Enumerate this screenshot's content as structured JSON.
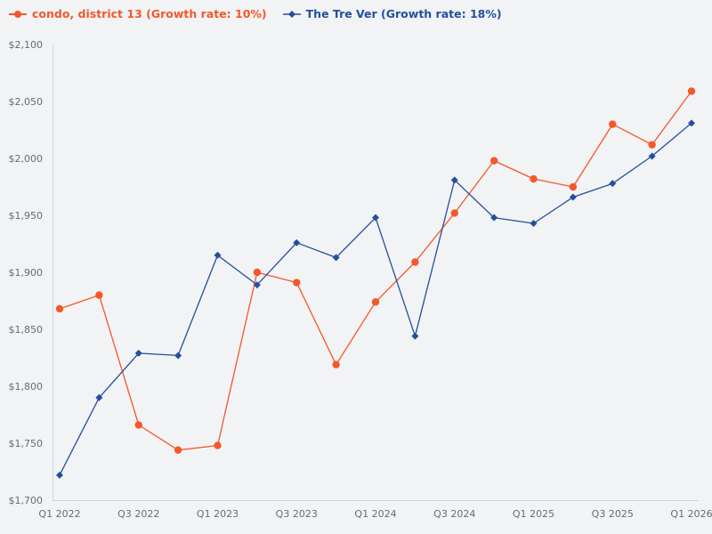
{
  "legend": {
    "series_a_label": "condo, district 13 (Growth rate: 10%)",
    "series_b_label": "The Tre Ver (Growth rate: 18%)"
  },
  "colors": {
    "series_a": "#f4572a",
    "series_b": "#234f9e",
    "axis": "#c9d4e6",
    "tick_text": "#666b73",
    "background": "#f2f3f5"
  },
  "chart_data": {
    "type": "line",
    "title": "",
    "xlabel": "",
    "ylabel": "",
    "ylim": [
      1700,
      2100
    ],
    "y_ticks": [
      "$1,700",
      "$1,750",
      "$1,800",
      "$1,850",
      "$1,900",
      "$1,950",
      "$2,000",
      "$2,050",
      "$2,100"
    ],
    "y_tick_values": [
      1700,
      1750,
      1800,
      1850,
      1900,
      1950,
      2000,
      2050,
      2100
    ],
    "x": [
      "Q1 2022",
      "Q2 2022",
      "Q3 2022",
      "Q4 2022",
      "Q1 2023",
      "Q2 2023",
      "Q3 2023",
      "Q4 2023",
      "Q1 2024",
      "Q2 2024",
      "Q3 2024",
      "Q4 2024",
      "Q1 2025",
      "Q2 2025",
      "Q3 2025",
      "Q4 2025",
      "Q1 2026"
    ],
    "x_tick_labels": [
      "Q1 2022",
      "",
      "Q3 2022",
      "",
      "Q1 2023",
      "",
      "Q3 2023",
      "",
      "Q1 2024",
      "",
      "Q3 2024",
      "",
      "Q1 2025",
      "",
      "Q3 2025",
      "",
      "Q1 2026"
    ],
    "grid": false,
    "legend_position": "top-left",
    "series": [
      {
        "name": "condo, district 13 (Growth rate: 10%)",
        "marker": "circle",
        "values": [
          1868,
          1880,
          1766,
          1744,
          1748,
          1900,
          1891,
          1819,
          1874,
          1909,
          1952,
          1998,
          1982,
          1975,
          2030,
          2012,
          2059
        ]
      },
      {
        "name": "The Tre Ver (Growth rate: 18%)",
        "marker": "diamond",
        "values": [
          1722,
          1790,
          1829,
          1827,
          1915,
          1889,
          1926,
          1913,
          1948,
          1844,
          1981,
          1948,
          1943,
          1966,
          1978,
          2002,
          2031
        ]
      }
    ]
  }
}
